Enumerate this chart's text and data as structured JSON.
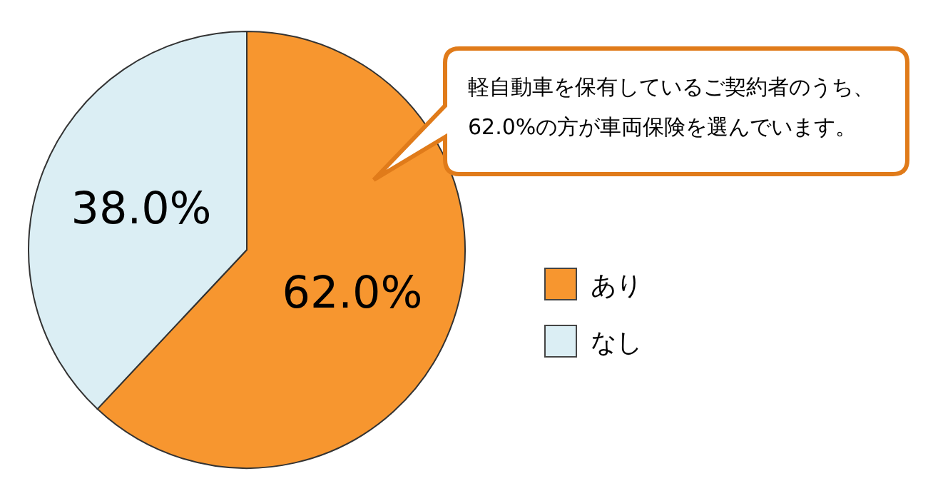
{
  "chart_data": {
    "type": "pie",
    "categories": [
      "あり",
      "なし"
    ],
    "values": [
      62.0,
      38.0
    ],
    "colors": [
      "#f7962f",
      "#dbeef4"
    ],
    "value_labels": [
      "62.0%",
      "38.0%"
    ],
    "legend": "right",
    "annotations": [
      "軽自動車を保有しているご契約者のうち、62.0%の方が車両保険を選んでいます。"
    ]
  }
}
